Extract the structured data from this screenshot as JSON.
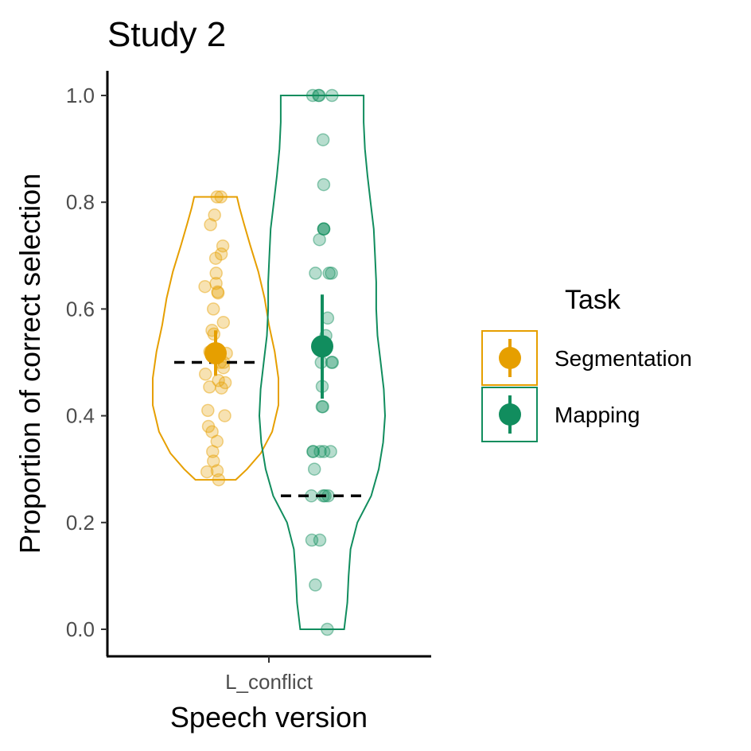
{
  "chart_data": {
    "type": "violin",
    "title": "Study 2",
    "xlabel": "Speech version",
    "ylabel": "Proportion of correct selection",
    "categories": [
      "L_conflict"
    ],
    "ylim": [
      -0.05,
      1.05
    ],
    "yticks": [
      "0.0",
      "0.2",
      "0.4",
      "0.6",
      "0.8",
      "1.0"
    ],
    "grid": false,
    "legend": {
      "title": "Task",
      "position": "right",
      "entries": [
        "Segmentation",
        "Mapping"
      ]
    },
    "series": [
      {
        "name": "Segmentation",
        "color": "#E69F00",
        "category": "L_conflict",
        "violin_range": [
          0.28,
          0.81
        ],
        "violin_density": [
          [
            0.28,
            0.32
          ],
          [
            0.3,
            0.5
          ],
          [
            0.33,
            0.72
          ],
          [
            0.37,
            0.9
          ],
          [
            0.42,
            1.0
          ],
          [
            0.47,
            1.0
          ],
          [
            0.52,
            0.94
          ],
          [
            0.57,
            0.85
          ],
          [
            0.62,
            0.78
          ],
          [
            0.67,
            0.68
          ],
          [
            0.72,
            0.55
          ],
          [
            0.76,
            0.45
          ],
          [
            0.79,
            0.38
          ],
          [
            0.81,
            0.34
          ]
        ],
        "chance_level": 0.5,
        "mean": 0.517,
        "ci": [
          0.475,
          0.56
        ],
        "points": [
          0.81,
          0.81,
          0.776,
          0.758,
          0.718,
          0.703,
          0.695,
          0.667,
          0.648,
          0.642,
          0.632,
          0.63,
          0.6,
          0.575,
          0.56,
          0.553,
          0.52,
          0.517,
          0.5,
          0.5,
          0.49,
          0.478,
          0.466,
          0.462,
          0.454,
          0.452,
          0.41,
          0.4,
          0.38,
          0.37,
          0.352,
          0.333,
          0.315,
          0.297,
          0.295,
          0.28
        ]
      },
      {
        "name": "Mapping",
        "color": "#118D5E",
        "category": "L_conflict",
        "violin_range": [
          0.0,
          1.0
        ],
        "violin_density": [
          [
            0.0,
            0.35
          ],
          [
            0.05,
            0.4
          ],
          [
            0.1,
            0.42
          ],
          [
            0.15,
            0.45
          ],
          [
            0.2,
            0.56
          ],
          [
            0.25,
            0.78
          ],
          [
            0.3,
            0.9
          ],
          [
            0.35,
            0.97
          ],
          [
            0.4,
            1.0
          ],
          [
            0.45,
            0.98
          ],
          [
            0.5,
            0.93
          ],
          [
            0.55,
            0.88
          ],
          [
            0.6,
            0.86
          ],
          [
            0.65,
            0.86
          ],
          [
            0.7,
            0.84
          ],
          [
            0.75,
            0.82
          ],
          [
            0.8,
            0.77
          ],
          [
            0.85,
            0.72
          ],
          [
            0.9,
            0.68
          ],
          [
            0.95,
            0.66
          ],
          [
            1.0,
            0.66
          ]
        ],
        "chance_level": 0.25,
        "mean": 0.53,
        "ci": [
          0.432,
          0.627
        ],
        "points": [
          1.0,
          1.0,
          1.0,
          1.0,
          0.917,
          0.833,
          0.75,
          0.75,
          0.75,
          0.73,
          0.667,
          0.667,
          0.667,
          0.583,
          0.55,
          0.5,
          0.5,
          0.5,
          0.455,
          0.417,
          0.417,
          0.333,
          0.333,
          0.333,
          0.333,
          0.333,
          0.3,
          0.25,
          0.25,
          0.25,
          0.25,
          0.167,
          0.167,
          0.083,
          0.0
        ]
      }
    ]
  }
}
